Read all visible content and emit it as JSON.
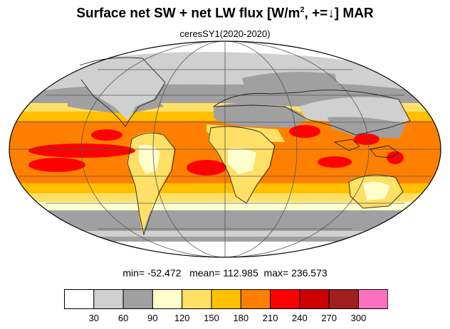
{
  "title": {
    "main": "Surface net SW + net LW flux [W/m",
    "exponent": "2",
    "tail": ", +=↓]  MAR"
  },
  "subtitle": "ceresSY1(2020-2020)",
  "stats": {
    "min_label": "min=",
    "min_value": "-52.472",
    "mean_label": "mean=",
    "mean_value": "112.985",
    "max_label": "max=",
    "max_value": "236.573"
  },
  "colorbar": {
    "colors": [
      "#ffffff",
      "#d0d0d0",
      "#a0a0a0",
      "#ffffcc",
      "#ffe066",
      "#ffc000",
      "#ff8000",
      "#ff0000",
      "#cc0000",
      "#a02020",
      "#ff70c0"
    ],
    "ticks": [
      "30",
      "60",
      "90",
      "120",
      "150",
      "180",
      "210",
      "240",
      "270",
      "300"
    ]
  },
  "map": {
    "projection": "Mollweide",
    "graticule_color": "#555555",
    "coastline_color": "#222222"
  }
}
